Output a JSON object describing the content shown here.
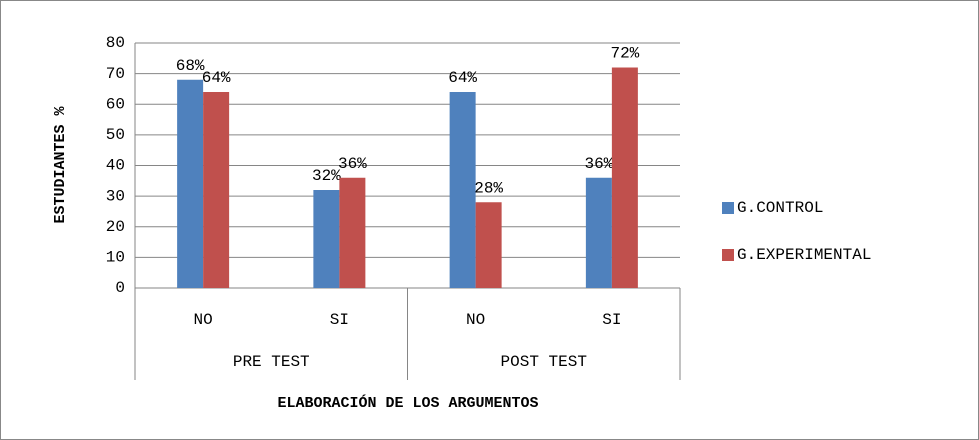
{
  "chart_data": {
    "type": "bar",
    "y_label": "ESTUDIANTES %",
    "x_label": "ELABORACIÓN DE LOS ARGUMENTOS",
    "categories": [
      "NO",
      "SI",
      "NO",
      "SI"
    ],
    "groups": [
      "PRE TEST",
      "POST TEST"
    ],
    "series": [
      {
        "name": "G.CONTROL",
        "color": "#4f81bd",
        "values": [
          68,
          32,
          64,
          36
        ],
        "value_labels": [
          "68%",
          "32%",
          "64%",
          "36%"
        ]
      },
      {
        "name": "G.EXPERIMENTAL",
        "color": "#c0504d",
        "values": [
          64,
          36,
          28,
          72
        ],
        "value_labels": [
          "64%",
          "36%",
          "28%",
          "72%"
        ]
      }
    ],
    "ylim": [
      0,
      80
    ],
    "yticks": [
      0,
      10,
      20,
      30,
      40,
      50,
      60,
      70,
      80
    ],
    "grid": true,
    "legend": "right"
  }
}
